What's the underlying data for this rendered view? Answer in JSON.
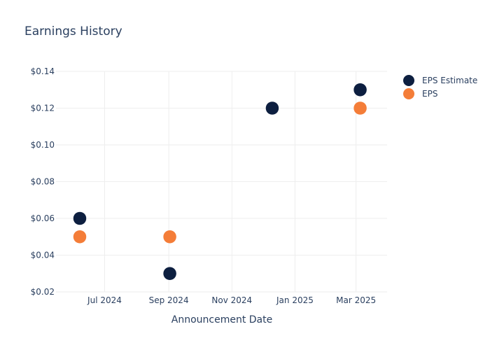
{
  "chart_data": {
    "type": "scatter",
    "title": "Earnings History",
    "xlabel": "Announcement Date",
    "ylabel": "",
    "x_ticks": [
      "2024-07-01",
      "2024-09-01",
      "2024-11-01",
      "2025-01-01",
      "2025-03-01"
    ],
    "x_tick_labels": [
      "Jul 2024",
      "Sep 2024",
      "Nov 2024",
      "Jan 2025",
      "Mar 2025"
    ],
    "y_ticks": [
      0.02,
      0.04,
      0.06,
      0.08,
      0.1,
      0.12,
      0.14
    ],
    "y_tick_labels": [
      "$0.02",
      "$0.04",
      "$0.06",
      "$0.08",
      "$0.10",
      "$0.12",
      "$0.14"
    ],
    "ylim": [
      0.02,
      0.14
    ],
    "xlim": [
      "2024-05-15",
      "2025-03-31"
    ],
    "grid": true,
    "legend_position": "top-right",
    "series": [
      {
        "name": "EPS Estimate",
        "color": "#0d1f40",
        "points": [
          {
            "x": "2024-06-07",
            "y": 0.06
          },
          {
            "x": "2024-09-02",
            "y": 0.03
          },
          {
            "x": "2024-12-10",
            "y": 0.12
          },
          {
            "x": "2025-03-05",
            "y": 0.13
          }
        ]
      },
      {
        "name": "EPS",
        "color": "#f47d38",
        "points": [
          {
            "x": "2024-06-07",
            "y": 0.05
          },
          {
            "x": "2024-09-02",
            "y": 0.05
          },
          {
            "x": "2024-12-10",
            "y": 0.12
          },
          {
            "x": "2025-03-05",
            "y": 0.12
          }
        ]
      }
    ]
  }
}
